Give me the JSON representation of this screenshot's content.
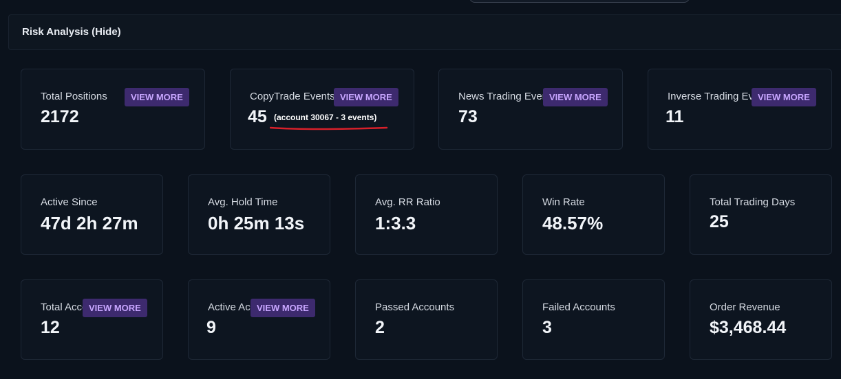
{
  "header": {
    "title": "Risk Analysis (Hide)"
  },
  "view_more_label": "VIEW MORE",
  "rows": [
    [
      {
        "id": "total-positions",
        "label": "Total Positions",
        "value": "2172",
        "has_button": true
      },
      {
        "id": "copytrade-events",
        "label": "CopyTrade Events *",
        "value": "45",
        "has_button": true,
        "note": "(account 30067 - 3 events)"
      },
      {
        "id": "news-trading-events",
        "label": "News Trading Events *",
        "value": "73",
        "has_button": true
      },
      {
        "id": "inverse-trading-events",
        "label": "Inverse Trading Events *",
        "value": "11",
        "has_button": true
      }
    ],
    [
      {
        "id": "active-since",
        "label": "Active Since",
        "value": "47d 2h 27m"
      },
      {
        "id": "avg-hold-time",
        "label": "Avg. Hold Time",
        "value": "0h 25m 13s"
      },
      {
        "id": "avg-rr-ratio",
        "label": "Avg. RR Ratio",
        "value": "1:3.3"
      },
      {
        "id": "win-rate",
        "label": "Win Rate",
        "value": "48.57%"
      },
      {
        "id": "total-trading-days",
        "label": "Total Trading Days",
        "value": "25"
      }
    ],
    [
      {
        "id": "total-accounts",
        "label": "Total Accounts",
        "value": "12",
        "has_button": true
      },
      {
        "id": "active-accounts",
        "label": "Active Accounts",
        "value": "9",
        "has_button": true
      },
      {
        "id": "passed-accounts",
        "label": "Passed Accounts",
        "value": "2"
      },
      {
        "id": "failed-accounts",
        "label": "Failed Accounts",
        "value": "3"
      },
      {
        "id": "order-revenue",
        "label": "Order Revenue",
        "value": "$3,468.44"
      }
    ]
  ],
  "colors": {
    "background": "#0b121c",
    "card": "#0d1520",
    "button_bg": "#3d2a6e",
    "button_text": "#c8a6ff",
    "annotation": "#d8202a"
  }
}
